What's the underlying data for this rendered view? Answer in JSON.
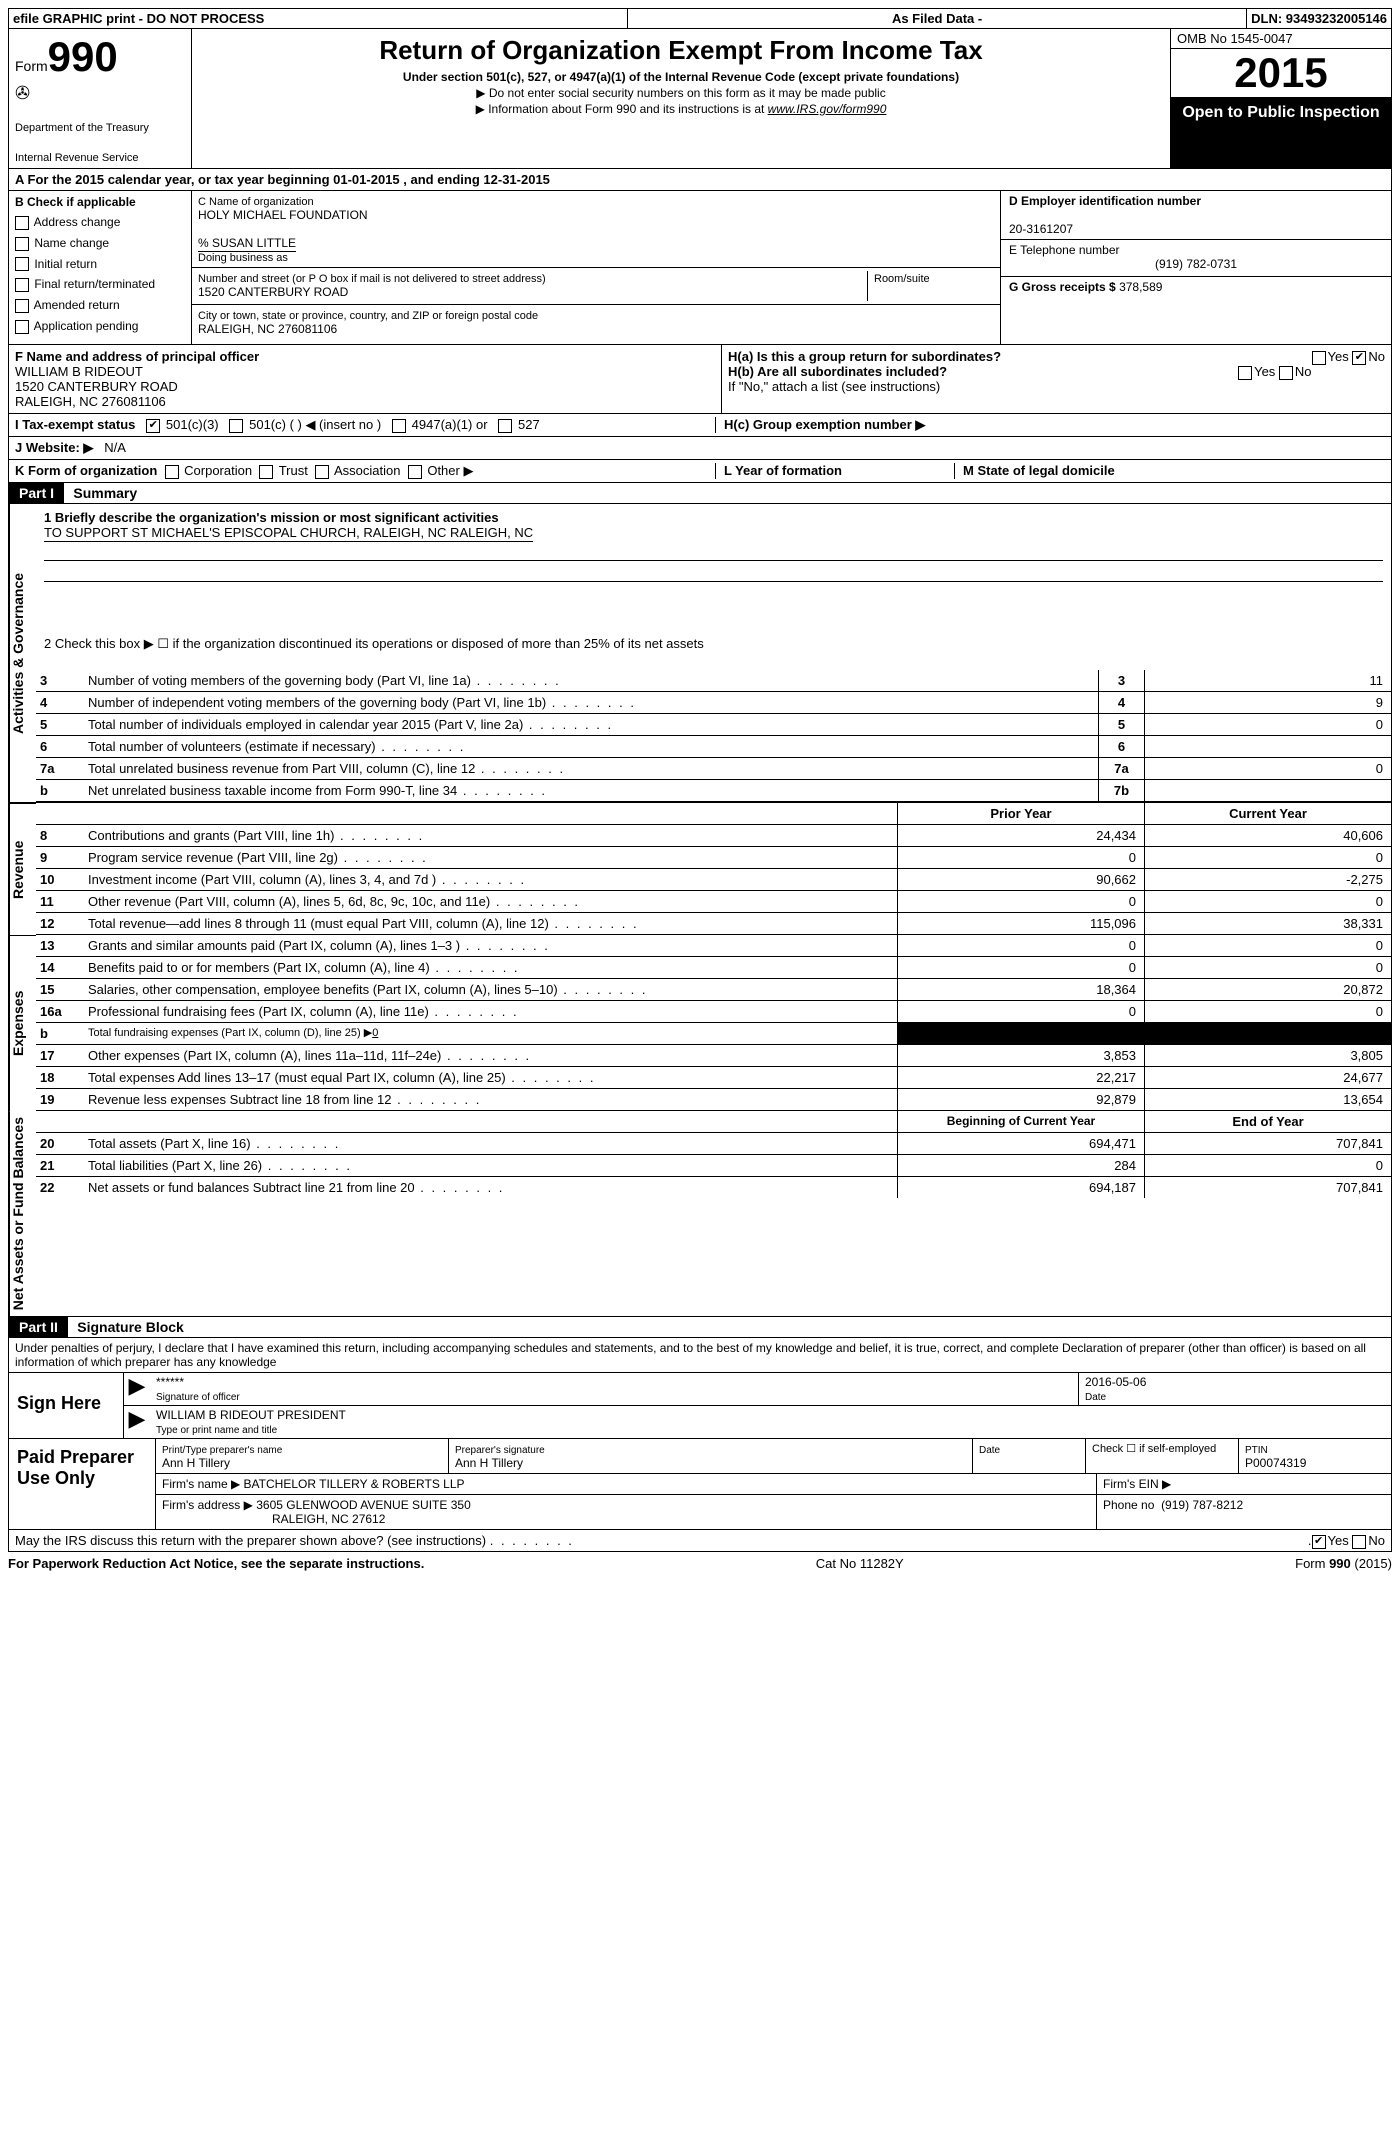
{
  "topbar": {
    "left": "efile GRAPHIC print - DO NOT PROCESS",
    "mid": "As Filed Data -",
    "right": "DLN: 93493232005146"
  },
  "header": {
    "form_prefix": "Form",
    "form_number": "990",
    "dept1": "Department of the Treasury",
    "dept2": "Internal Revenue Service",
    "title": "Return of Organization Exempt From Income Tax",
    "sub1": "Under section 501(c), 527, or 4947(a)(1) of the Internal Revenue Code (except private foundations)",
    "sub2a": "▶ Do not enter social security numbers on this form as it may be made public",
    "sub2b": "▶ Information about Form 990 and its instructions is at ",
    "sub2b_link": "www.IRS.gov/form990",
    "omb": "OMB No 1545-0047",
    "year": "2015",
    "open": "Open to Public Inspection"
  },
  "row_a": "A  For the 2015 calendar year, or tax year beginning 01-01-2015   , and ending 12-31-2015",
  "col_b": {
    "label": "B  Check if applicable",
    "items": [
      "Address change",
      "Name change",
      "Initial return",
      "Final return/terminated",
      "Amended return",
      "Application pending"
    ]
  },
  "col_c": {
    "c_label": "C Name of organization",
    "org_name": "HOLY MICHAEL FOUNDATION",
    "care_of": "% SUSAN LITTLE",
    "dba": "Doing business as",
    "addr_label": "Number and street (or P O  box if mail is not delivered to street address)",
    "room_label": "Room/suite",
    "addr": "1520 CANTERBURY ROAD",
    "city_label": "City or town, state or province, country, and ZIP or foreign postal code",
    "city": "RALEIGH, NC  276081106"
  },
  "col_de": {
    "d_label": "D Employer identification number",
    "ein": "20-3161207",
    "e_label": "E Telephone number",
    "phone": "(919) 782-0731",
    "g_label": "G Gross receipts $",
    "gross": "378,589"
  },
  "fh": {
    "f_label": "F   Name and address of principal officer",
    "f_name": "WILLIAM B RIDEOUT",
    "f_addr1": "1520 CANTERBURY ROAD",
    "f_addr2": "RALEIGH, NC  276081106",
    "ha": "H(a)  Is this a group return for subordinates?",
    "hb": "H(b)  Are all subordinates included?",
    "hnote": "If \"No,\" attach a list  (see instructions)",
    "hc": "H(c)   Group exemption number ▶"
  },
  "row_i": "I    Tax-exempt status",
  "row_i_opts": [
    "501(c)(3)",
    "501(c) (  ) ◀ (insert no )",
    "4947(a)(1) or",
    "527"
  ],
  "row_j": {
    "label": "J   Website: ▶",
    "val": "N/A"
  },
  "row_k": {
    "label": "K Form of organization",
    "opts": [
      "Corporation",
      "Trust",
      "Association",
      "Other ▶"
    ],
    "l": "L Year of formation",
    "m": "M State of legal domicile"
  },
  "part1": {
    "hdr": "Part I",
    "title": "Summary",
    "line1a": "1 Briefly describe the organization's mission or most significant activities",
    "line1b": "TO SUPPORT ST MICHAEL'S EPISCOPAL CHURCH, RALEIGH, NC RALEIGH, NC",
    "line2": "2  Check this box ▶ ☐  if the organization discontinued its operations or disposed of more than 25% of its net assets",
    "rows_right": [
      {
        "n": "3",
        "d": "Number of voting members of the governing body (Part VI, line 1a)",
        "lab": "3",
        "val": "11"
      },
      {
        "n": "4",
        "d": "Number of independent voting members of the governing body (Part VI, line 1b)",
        "lab": "4",
        "val": "9"
      },
      {
        "n": "5",
        "d": "Total number of individuals employed in calendar year 2015 (Part V, line 2a)",
        "lab": "5",
        "val": "0"
      },
      {
        "n": "6",
        "d": "Total number of volunteers (estimate if necessary)",
        "lab": "6",
        "val": ""
      },
      {
        "n": "7a",
        "d": "Total unrelated business revenue from Part VIII, column (C), line 12",
        "lab": "7a",
        "val": "0"
      },
      {
        "n": "b",
        "d": "Net unrelated business taxable income from Form 990-T, line 34",
        "lab": "7b",
        "val": ""
      }
    ],
    "col_hdr_prior": "Prior Year",
    "col_hdr_current": "Current Year",
    "revenue_rows": [
      {
        "n": "8",
        "d": "Contributions and grants (Part VIII, line 1h)",
        "c1": "24,434",
        "c2": "40,606"
      },
      {
        "n": "9",
        "d": "Program service revenue (Part VIII, line 2g)",
        "c1": "0",
        "c2": "0"
      },
      {
        "n": "10",
        "d": "Investment income (Part VIII, column (A), lines 3, 4, and 7d )",
        "c1": "90,662",
        "c2": "-2,275"
      },
      {
        "n": "11",
        "d": "Other revenue (Part VIII, column (A), lines 5, 6d, 8c, 9c, 10c, and 11e)",
        "c1": "0",
        "c2": "0"
      },
      {
        "n": "12",
        "d": "Total revenue—add lines 8 through 11 (must equal Part VIII, column (A), line 12)",
        "c1": "115,096",
        "c2": "38,331"
      }
    ],
    "expense_rows": [
      {
        "n": "13",
        "d": "Grants and similar amounts paid (Part IX, column (A), lines 1–3 )",
        "c1": "0",
        "c2": "0"
      },
      {
        "n": "14",
        "d": "Benefits paid to or for members (Part IX, column (A), line 4)",
        "c1": "0",
        "c2": "0"
      },
      {
        "n": "15",
        "d": "Salaries, other compensation, employee benefits (Part IX, column (A), lines 5–10)",
        "c1": "18,364",
        "c2": "20,872"
      },
      {
        "n": "16a",
        "d": "Professional fundraising fees (Part IX, column (A), line 11e)",
        "c1": "0",
        "c2": "0"
      },
      {
        "n": "b",
        "d": "Total fundraising expenses (Part IX, column (D), line 25) ▶",
        "d_val": "0",
        "c1": "BLACK",
        "c2": "BLACK",
        "small": true
      },
      {
        "n": "17",
        "d": "Other expenses (Part IX, column (A), lines 11a–11d, 11f–24e)",
        "c1": "3,853",
        "c2": "3,805"
      },
      {
        "n": "18",
        "d": "Total expenses  Add lines 13–17 (must equal Part IX, column (A), line 25)",
        "c1": "22,217",
        "c2": "24,677"
      },
      {
        "n": "19",
        "d": "Revenue less expenses  Subtract line 18 from line 12",
        "c1": "92,879",
        "c2": "13,654"
      }
    ],
    "bal_hdr1": "Beginning of Current Year",
    "bal_hdr2": "End of Year",
    "bal_rows": [
      {
        "n": "20",
        "d": "Total assets (Part X, line 16)",
        "c1": "694,471",
        "c2": "707,841"
      },
      {
        "n": "21",
        "d": "Total liabilities (Part X, line 26)",
        "c1": "284",
        "c2": "0"
      },
      {
        "n": "22",
        "d": "Net assets or fund balances  Subtract line 21 from line 20",
        "c1": "694,187",
        "c2": "707,841"
      }
    ],
    "side_gov": "Activities & Governance",
    "side_rev": "Revenue",
    "side_exp": "Expenses",
    "side_net": "Net Assets or Fund Balances"
  },
  "part2": {
    "hdr": "Part II",
    "title": "Signature Block",
    "decl": "Under penalties of perjury, I declare that I have examined this return, including accompanying schedules and statements, and to the best of my knowledge and belief, it is true, correct, and complete  Declaration of preparer (other than officer) is based on all information of which preparer has any knowledge",
    "sign_here": "Sign Here",
    "sig_mask": "******",
    "sig_of": "Signature of officer",
    "sig_date": "2016-05-06",
    "date_lbl": "Date",
    "officer": "WILLIAM B RIDEOUT PRESIDENT",
    "officer_lbl": "Type or print name and title",
    "paid": "Paid Preparer Use Only",
    "p_name_lbl": "Print/Type preparer's name",
    "p_name": "Ann H Tillery",
    "p_sig_lbl": "Preparer's signature",
    "p_sig": "Ann H Tillery",
    "p_date_lbl": "Date",
    "p_check": "Check ☐ if self-employed",
    "ptin_lbl": "PTIN",
    "ptin": "P00074319",
    "firm_name_lbl": "Firm's name     ▶",
    "firm_name": "BATCHELOR TILLERY & ROBERTS LLP",
    "firm_ein": "Firm's EIN ▶",
    "firm_addr_lbl": "Firm's address ▶",
    "firm_addr1": "3605 GLENWOOD AVENUE SUITE 350",
    "firm_addr2": "RALEIGH, NC  27612",
    "firm_phone_lbl": "Phone no",
    "firm_phone": "(919) 787-8212",
    "discuss": "May the IRS discuss this return with the preparer shown above? (see instructions)"
  },
  "footer": {
    "left": "For Paperwork Reduction Act Notice, see the separate instructions.",
    "mid": "Cat  No  11282Y",
    "right": "Form 990 (2015)"
  }
}
